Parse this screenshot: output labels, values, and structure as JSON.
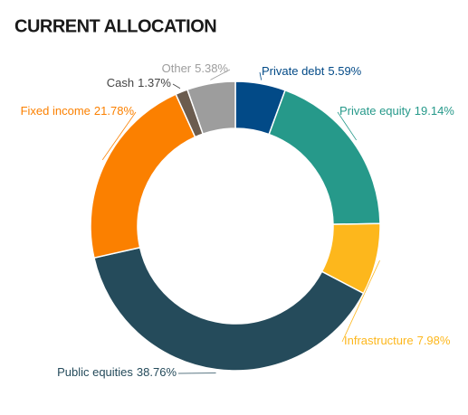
{
  "chart_data": {
    "type": "donut",
    "title": "CURRENT ALLOCATION",
    "categories": [
      "Private debt",
      "Private equity",
      "Infrastructure",
      "Public equities",
      "Fixed income",
      "Cash",
      "Other"
    ],
    "values": [
      5.59,
      19.14,
      7.98,
      38.76,
      21.78,
      1.37,
      5.38
    ],
    "value_labels": [
      "5.59%",
      "19.14%",
      "7.98%",
      "38.76%",
      "21.78%",
      "1.37%",
      "5.38%"
    ],
    "colors": [
      "#024a87",
      "#26998a",
      "#fdb71c",
      "#254b5b",
      "#fb8000",
      "#6b5c4f",
      "#9d9d9d"
    ]
  }
}
